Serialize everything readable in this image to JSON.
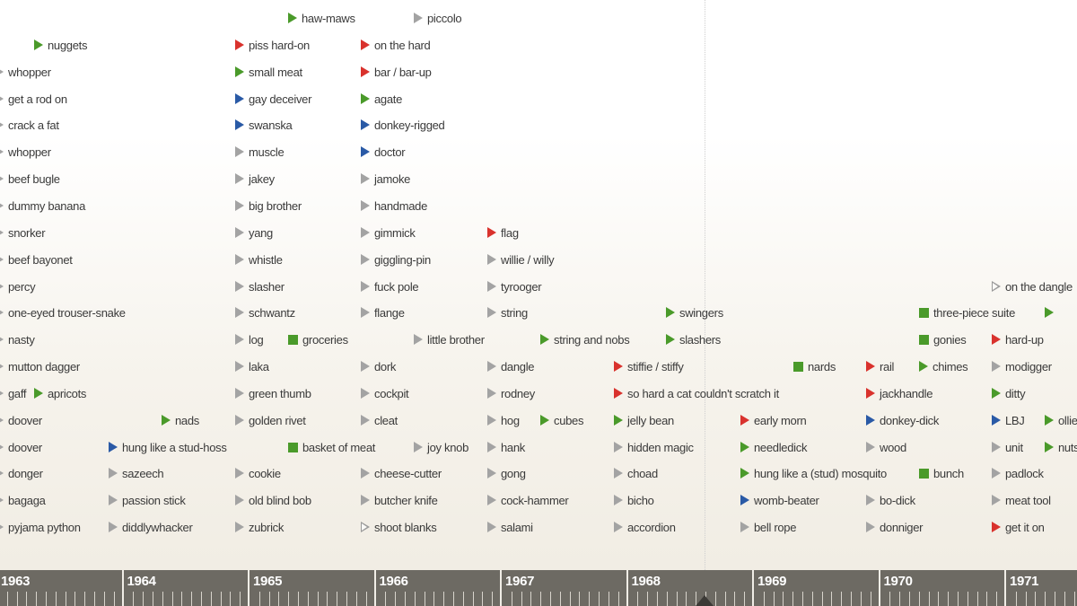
{
  "colors": {
    "red": "#d9322d",
    "green": "#4a9a2a",
    "blue": "#2a5aa6",
    "gray": "#a3a3a3",
    "axis": "#6d6a63"
  },
  "timeline": {
    "years": [
      "1963",
      "1964",
      "1965",
      "1966",
      "1967",
      "1968",
      "1969",
      "1970",
      "1971"
    ],
    "ticks_per_year": 12
  },
  "columns": [
    {
      "terms": [
        {
          "label": "whopper",
          "marker": "tri",
          "color": "gray",
          "row": 2
        },
        {
          "label": "get a rod on",
          "marker": "tri",
          "color": "gray",
          "row": 3
        },
        {
          "label": "crack a fat",
          "marker": "tri",
          "color": "gray",
          "row": 4
        },
        {
          "label": "whopper",
          "marker": "tri",
          "color": "gray",
          "row": 5
        },
        {
          "label": "beef bugle",
          "marker": "tri",
          "color": "gray",
          "row": 6
        },
        {
          "label": "dummy banana",
          "marker": "tri",
          "color": "gray",
          "row": 7
        },
        {
          "label": "snorker",
          "marker": "tri",
          "color": "gray",
          "row": 8
        },
        {
          "label": "beef bayonet",
          "marker": "tri",
          "color": "gray",
          "row": 9
        },
        {
          "label": "percy",
          "marker": "tri",
          "color": "gray",
          "row": 10
        },
        {
          "label": "one-eyed trouser-snake",
          "marker": "tri",
          "color": "gray",
          "row": 11
        },
        {
          "label": "nasty",
          "marker": "tri",
          "color": "gray",
          "row": 12
        },
        {
          "label": "mutton dagger",
          "marker": "tri",
          "color": "gray",
          "row": 13
        },
        {
          "label": "gaff",
          "marker": "tri",
          "color": "gray",
          "row": 14
        },
        {
          "label": "doover",
          "marker": "tri",
          "color": "gray",
          "row": 15
        },
        {
          "label": "doover",
          "marker": "tri",
          "color": "gray",
          "row": 16
        },
        {
          "label": "donger",
          "marker": "tri",
          "color": "gray",
          "row": 17
        },
        {
          "label": "bagaga",
          "marker": "tri",
          "color": "gray",
          "row": 18
        },
        {
          "label": "pyjama python",
          "marker": "tri",
          "color": "gray",
          "row": 19
        }
      ]
    },
    {
      "terms": [
        {
          "label": "nuggets",
          "marker": "tri",
          "color": "green",
          "row": 1
        },
        {
          "label": "apricots",
          "marker": "tri",
          "color": "green",
          "row": 14
        }
      ]
    },
    {
      "terms": [
        {
          "label": "hung like a stud-hoss",
          "marker": "tri",
          "color": "blue",
          "row": 16
        },
        {
          "label": "sazeech",
          "marker": "tri",
          "color": "gray",
          "row": 17
        },
        {
          "label": "passion stick",
          "marker": "tri",
          "color": "gray",
          "row": 18
        },
        {
          "label": "diddlywhacker",
          "marker": "tri",
          "color": "gray",
          "row": 19
        }
      ]
    },
    {
      "terms": [
        {
          "label": "nads",
          "marker": "tri",
          "color": "green",
          "row": 15
        }
      ]
    },
    {
      "terms": [
        {
          "label": "piss hard-on",
          "marker": "tri",
          "color": "red",
          "row": 1
        },
        {
          "label": "small meat",
          "marker": "tri",
          "color": "green",
          "row": 2
        },
        {
          "label": "gay deceiver",
          "marker": "tri",
          "color": "blue",
          "row": 3
        },
        {
          "label": "swanska",
          "marker": "tri",
          "color": "blue",
          "row": 4
        },
        {
          "label": "muscle",
          "marker": "tri",
          "color": "gray",
          "row": 5
        },
        {
          "label": "jakey",
          "marker": "tri",
          "color": "gray",
          "row": 6
        },
        {
          "label": "big brother",
          "marker": "tri",
          "color": "gray",
          "row": 7
        },
        {
          "label": "yang",
          "marker": "tri",
          "color": "gray",
          "row": 8
        },
        {
          "label": "whistle",
          "marker": "tri",
          "color": "gray",
          "row": 9
        },
        {
          "label": "slasher",
          "marker": "tri",
          "color": "gray",
          "row": 10
        },
        {
          "label": "schwantz",
          "marker": "tri",
          "color": "gray",
          "row": 11
        },
        {
          "label": "log",
          "marker": "tri",
          "color": "gray",
          "row": 12
        },
        {
          "label": "laka",
          "marker": "tri",
          "color": "gray",
          "row": 13
        },
        {
          "label": "green thumb",
          "marker": "tri",
          "color": "gray",
          "row": 14
        },
        {
          "label": "golden rivet",
          "marker": "tri",
          "color": "gray",
          "row": 15
        },
        {
          "label": "cookie",
          "marker": "tri",
          "color": "gray",
          "row": 17
        },
        {
          "label": "old blind bob",
          "marker": "tri",
          "color": "gray",
          "row": 18
        },
        {
          "label": "zubrick",
          "marker": "tri",
          "color": "gray",
          "row": 19
        }
      ]
    },
    {
      "terms": [
        {
          "label": "haw-maws",
          "marker": "tri",
          "color": "green",
          "row": 0
        },
        {
          "label": "groceries",
          "marker": "sq",
          "color": "green",
          "row": 12
        },
        {
          "label": "basket of meat",
          "marker": "sq",
          "color": "green",
          "row": 16
        }
      ]
    },
    {
      "terms": [
        {
          "label": "on the hard",
          "marker": "tri",
          "color": "red",
          "row": 1
        },
        {
          "label": "bar / bar-up",
          "marker": "tri",
          "color": "red",
          "row": 2
        },
        {
          "label": "agate",
          "marker": "tri",
          "color": "green",
          "row": 3
        },
        {
          "label": "donkey-rigged",
          "marker": "tri",
          "color": "blue",
          "row": 4
        },
        {
          "label": "doctor",
          "marker": "tri",
          "color": "blue",
          "row": 5
        },
        {
          "label": "jamoke",
          "marker": "tri",
          "color": "gray",
          "row": 6
        },
        {
          "label": "handmade",
          "marker": "tri",
          "color": "gray",
          "row": 7
        },
        {
          "label": "gimmick",
          "marker": "tri",
          "color": "gray",
          "row": 8
        },
        {
          "label": "giggling-pin",
          "marker": "tri",
          "color": "gray",
          "row": 9
        },
        {
          "label": "fuck pole",
          "marker": "tri",
          "color": "gray",
          "row": 10
        },
        {
          "label": "flange",
          "marker": "tri",
          "color": "gray",
          "row": 11
        },
        {
          "label": "dork",
          "marker": "tri",
          "color": "gray",
          "row": 13
        },
        {
          "label": "cockpit",
          "marker": "tri",
          "color": "gray",
          "row": 14
        },
        {
          "label": "cleat",
          "marker": "tri",
          "color": "gray",
          "row": 15
        },
        {
          "label": "cheese-cutter",
          "marker": "tri",
          "color": "gray",
          "row": 17
        },
        {
          "label": "butcher knife",
          "marker": "tri",
          "color": "gray",
          "row": 18
        },
        {
          "label": "shoot blanks",
          "marker": "tri",
          "color": "hollow",
          "row": 19
        }
      ]
    },
    {
      "terms": [
        {
          "label": "piccolo",
          "marker": "tri",
          "color": "gray",
          "row": 0
        },
        {
          "label": "little brother",
          "marker": "tri",
          "color": "gray",
          "row": 12
        },
        {
          "label": "joy knob",
          "marker": "tri",
          "color": "gray",
          "row": 16
        }
      ]
    },
    {
      "terms": [
        {
          "label": "flag",
          "marker": "tri",
          "color": "red",
          "row": 8
        },
        {
          "label": "willie / willy",
          "marker": "tri",
          "color": "gray",
          "row": 9
        },
        {
          "label": "tyrooger",
          "marker": "tri",
          "color": "gray",
          "row": 10
        },
        {
          "label": "string",
          "marker": "tri",
          "color": "gray",
          "row": 11
        },
        {
          "label": "dangle",
          "marker": "tri",
          "color": "gray",
          "row": 13
        },
        {
          "label": "rodney",
          "marker": "tri",
          "color": "gray",
          "row": 14
        },
        {
          "label": "hog",
          "marker": "tri",
          "color": "gray",
          "row": 15
        },
        {
          "label": "hank",
          "marker": "tri",
          "color": "gray",
          "row": 16
        },
        {
          "label": "gong",
          "marker": "tri",
          "color": "gray",
          "row": 17
        },
        {
          "label": "cock-hammer",
          "marker": "tri",
          "color": "gray",
          "row": 18
        },
        {
          "label": "salami",
          "marker": "tri",
          "color": "gray",
          "row": 19
        }
      ]
    },
    {
      "terms": [
        {
          "label": "string and nobs",
          "marker": "tri",
          "color": "green",
          "row": 12
        },
        {
          "label": "cubes",
          "marker": "tri",
          "color": "green",
          "row": 15
        }
      ]
    },
    {
      "terms": [
        {
          "label": "stiffie / stiffy",
          "marker": "tri",
          "color": "red",
          "row": 13
        },
        {
          "label": "so hard a cat couldn't scratch it",
          "marker": "tri",
          "color": "red",
          "row": 14
        },
        {
          "label": "jelly bean",
          "marker": "tri",
          "color": "green",
          "row": 15
        },
        {
          "label": "hidden magic",
          "marker": "tri",
          "color": "gray",
          "row": 16
        },
        {
          "label": "choad",
          "marker": "tri",
          "color": "gray",
          "row": 17
        },
        {
          "label": "bicho",
          "marker": "tri",
          "color": "gray",
          "row": 18
        },
        {
          "label": "accordion",
          "marker": "tri",
          "color": "gray",
          "row": 19
        }
      ]
    },
    {
      "terms": [
        {
          "label": "swingers",
          "marker": "tri",
          "color": "green",
          "row": 11
        },
        {
          "label": "slashers",
          "marker": "tri",
          "color": "green",
          "row": 12
        }
      ]
    },
    {
      "terms": [
        {
          "label": "early morn",
          "marker": "tri",
          "color": "red",
          "row": 15
        },
        {
          "label": "needledick",
          "marker": "tri",
          "color": "green",
          "row": 16
        },
        {
          "label": "hung like a (stud) mosquito",
          "marker": "tri",
          "color": "green",
          "row": 17
        },
        {
          "label": "womb-beater",
          "marker": "tri",
          "color": "blue",
          "row": 18
        },
        {
          "label": "bell rope",
          "marker": "tri",
          "color": "gray",
          "row": 19
        }
      ]
    },
    {
      "terms": [
        {
          "label": "nards",
          "marker": "sq",
          "color": "green",
          "row": 13
        }
      ]
    },
    {
      "terms": [
        {
          "label": "rail",
          "marker": "tri",
          "color": "red",
          "row": 13
        },
        {
          "label": "jackhandle",
          "marker": "tri",
          "color": "red",
          "row": 14
        },
        {
          "label": "donkey-dick",
          "marker": "tri",
          "color": "blue",
          "row": 15
        },
        {
          "label": "wood",
          "marker": "tri",
          "color": "gray",
          "row": 16
        },
        {
          "label": "bo-dick",
          "marker": "tri",
          "color": "gray",
          "row": 18
        },
        {
          "label": "donniger",
          "marker": "tri",
          "color": "gray",
          "row": 19
        }
      ]
    },
    {
      "terms": [
        {
          "label": "three-piece suite",
          "marker": "sq",
          "color": "green",
          "row": 11
        },
        {
          "label": "gonies",
          "marker": "sq",
          "color": "green",
          "row": 12
        },
        {
          "label": "chimes",
          "marker": "tri",
          "color": "green",
          "row": 13
        },
        {
          "label": "bunch",
          "marker": "sq",
          "color": "green",
          "row": 17
        }
      ]
    },
    {
      "terms": [
        {
          "label": "on the dangle",
          "marker": "tri",
          "color": "hollow",
          "row": 10
        },
        {
          "label": "hard-up",
          "marker": "tri",
          "color": "red",
          "row": 12
        },
        {
          "label": "modigger",
          "marker": "tri",
          "color": "gray",
          "row": 13
        },
        {
          "label": "ditty",
          "marker": "tri",
          "color": "green",
          "row": 14
        },
        {
          "label": "LBJ",
          "marker": "tri",
          "color": "blue",
          "row": 15
        },
        {
          "label": "unit",
          "marker": "tri",
          "color": "gray",
          "row": 16
        },
        {
          "label": "padlock",
          "marker": "tri",
          "color": "gray",
          "row": 17
        },
        {
          "label": "meat tool",
          "marker": "tri",
          "color": "gray",
          "row": 18
        },
        {
          "label": "get it on",
          "marker": "tri",
          "color": "red",
          "row": 19
        }
      ]
    },
    {
      "terms": [
        {
          "label": "",
          "marker": "tri",
          "color": "green",
          "row": 11
        },
        {
          "label": "ollie",
          "marker": "tri",
          "color": "green",
          "row": 15
        },
        {
          "label": "nuts",
          "marker": "tri",
          "color": "green",
          "row": 16
        }
      ]
    }
  ]
}
